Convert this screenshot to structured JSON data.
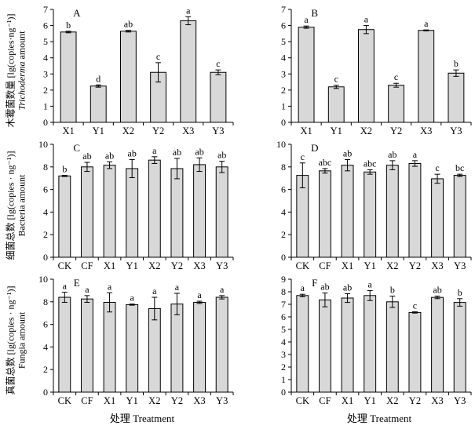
{
  "figure": {
    "x_axis_title": "处理 Treatment",
    "ylabels": [
      {
        "cn": "木霉菌数量 [lg(copies·ng⁻¹)]",
        "en_italic": "Trichoderma",
        "en_rest": " amount"
      },
      {
        "cn": "细菌总数 [lg(copies · ng⁻¹)]",
        "en_italic": "",
        "en_rest": "Bacteria amount"
      },
      {
        "cn": "真菌总数 [lg(copies · ng⁻¹)]",
        "en_italic": "",
        "en_rest": "Fungia amount"
      }
    ],
    "style": {
      "bar_fill": "#d8d8d8",
      "bar_stroke": "#000000",
      "axis_color": "#000000"
    }
  },
  "chart_data": [
    {
      "type": "bar",
      "panel_label": "A",
      "row": 0,
      "col": 0,
      "title": "Trichoderma amount / 木霉菌数量",
      "categories": [
        "X1",
        "Y1",
        "X2",
        "Y2",
        "X3",
        "Y3"
      ],
      "values": [
        5.6,
        2.25,
        5.65,
        3.1,
        6.3,
        3.1
      ],
      "errors": [
        0.05,
        0.07,
        0.05,
        0.6,
        0.25,
        0.15
      ],
      "sig_letters": [
        "b",
        "d",
        "ab",
        "c",
        "a",
        "c"
      ],
      "ylim": [
        0,
        7
      ],
      "ytick_step": 1,
      "grid": false
    },
    {
      "type": "bar",
      "panel_label": "B",
      "row": 0,
      "col": 1,
      "title": "Trichoderma amount / 木霉菌数量",
      "categories": [
        "X1",
        "Y1",
        "X2",
        "Y2",
        "X3",
        "Y3"
      ],
      "values": [
        5.9,
        2.2,
        5.75,
        2.3,
        5.7,
        3.05
      ],
      "errors": [
        0.07,
        0.1,
        0.25,
        0.12,
        0.03,
        0.2
      ],
      "sig_letters": [
        "a",
        "c",
        "a",
        "c",
        "a",
        "b"
      ],
      "ylim": [
        0,
        7
      ],
      "ytick_step": 1,
      "grid": false
    },
    {
      "type": "bar",
      "panel_label": "C",
      "row": 1,
      "col": 0,
      "title": "Bacteria amount / 细菌总数",
      "categories": [
        "CK",
        "CF",
        "X1",
        "Y1",
        "X2",
        "Y2",
        "X3",
        "Y3"
      ],
      "values": [
        7.2,
        8.0,
        8.15,
        7.85,
        8.6,
        7.85,
        8.2,
        8.0
      ],
      "errors": [
        0.05,
        0.4,
        0.3,
        0.8,
        0.3,
        0.9,
        0.6,
        0.5
      ],
      "sig_letters": [
        "b",
        "ab",
        "ab",
        "ab",
        "a",
        "ab",
        "ab",
        "ab"
      ],
      "ylim": [
        0,
        10
      ],
      "ytick_step": 2,
      "grid": false
    },
    {
      "type": "bar",
      "panel_label": "D",
      "row": 1,
      "col": 1,
      "title": "Bacteria amount / 细菌总数",
      "categories": [
        "CK",
        "CF",
        "X1",
        "Y1",
        "X2",
        "Y2",
        "X3",
        "Y3"
      ],
      "values": [
        7.25,
        7.65,
        8.15,
        7.55,
        8.15,
        8.3,
        6.95,
        7.25
      ],
      "errors": [
        1.1,
        0.2,
        0.5,
        0.2,
        0.4,
        0.25,
        0.4,
        0.1
      ],
      "sig_letters": [
        "c",
        "abc",
        "ab",
        "abc",
        "ab",
        "a",
        "c",
        "bc"
      ],
      "ylim": [
        0,
        10
      ],
      "ytick_step": 2,
      "grid": false
    },
    {
      "type": "bar",
      "panel_label": "E",
      "row": 2,
      "col": 0,
      "title": "Fungia amount / 真菌总数",
      "categories": [
        "CK",
        "CF",
        "X1",
        "Y1",
        "X2",
        "Y2",
        "X3",
        "Y3"
      ],
      "values": [
        8.4,
        8.25,
        7.95,
        7.75,
        7.4,
        7.8,
        7.95,
        8.4
      ],
      "errors": [
        0.45,
        0.3,
        0.85,
        0.05,
        1.0,
        0.95,
        0.1,
        0.15
      ],
      "sig_letters": [
        "a",
        "a",
        "a",
        "a",
        "a",
        "a",
        "a",
        "a"
      ],
      "ylim": [
        0,
        10
      ],
      "ytick_step": 2,
      "grid": false
    },
    {
      "type": "bar",
      "panel_label": "F",
      "row": 2,
      "col": 1,
      "title": "Fungia amount / 真菌总数",
      "categories": [
        "CK",
        "CF",
        "X1",
        "Y1",
        "X2",
        "Y2",
        "X3",
        "Y3"
      ],
      "values": [
        7.7,
        7.35,
        7.5,
        7.7,
        7.2,
        6.35,
        7.55,
        7.15
      ],
      "errors": [
        0.1,
        0.55,
        0.35,
        0.4,
        0.45,
        0.05,
        0.1,
        0.3
      ],
      "sig_letters": [
        "a",
        "ab",
        "ab",
        "a",
        "b",
        "c",
        "ab",
        "b"
      ],
      "ylim": [
        0,
        9
      ],
      "ytick_step": 1,
      "grid": false
    }
  ]
}
